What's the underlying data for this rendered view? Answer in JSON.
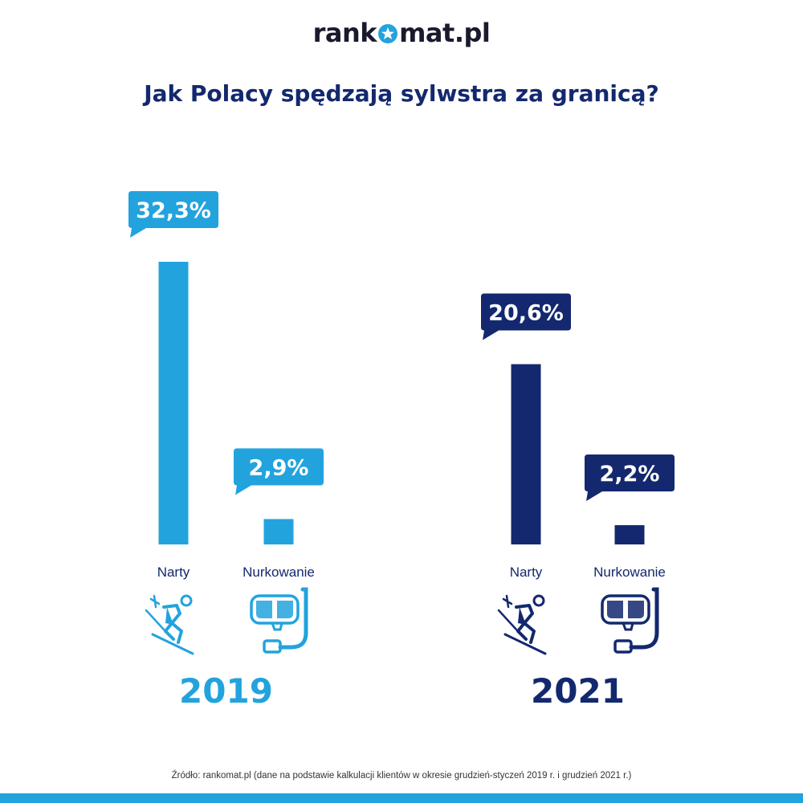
{
  "logo": {
    "prefix": "rank",
    "suffix": "mat.pl",
    "star_color": "#22a3dd"
  },
  "title": "Jak Polacy spędzają sylwstra za granicą?",
  "colors": {
    "light": "#22a3dd",
    "dark": "#13286e",
    "label": "#13286e"
  },
  "chart_data": {
    "type": "bar",
    "title": "Jak Polacy spędzają sylwstra za granicą?",
    "unit": "%",
    "groups": [
      {
        "name": "2019",
        "color": "#22a3dd",
        "categories": [
          "Narty",
          "Nurkowanie"
        ],
        "values": [
          32.3,
          2.9
        ],
        "value_labels": [
          "32,3%",
          "2,9%"
        ],
        "icons": [
          "skier-icon",
          "diving-mask-icon"
        ]
      },
      {
        "name": "2021",
        "color": "#13286e",
        "categories": [
          "Narty",
          "Nurkowanie"
        ],
        "values": [
          20.6,
          2.2
        ],
        "value_labels": [
          "20,6%",
          "2,2%"
        ],
        "icons": [
          "skier-icon",
          "diving-mask-icon"
        ]
      }
    ],
    "grid": false,
    "axes_visible": false
  },
  "source": "Źródło: rankomat.pl (dane na podstawie kalkulacji klientów w okresie grudzień-styczeń 2019 r. i grudzień 2021 r.)"
}
